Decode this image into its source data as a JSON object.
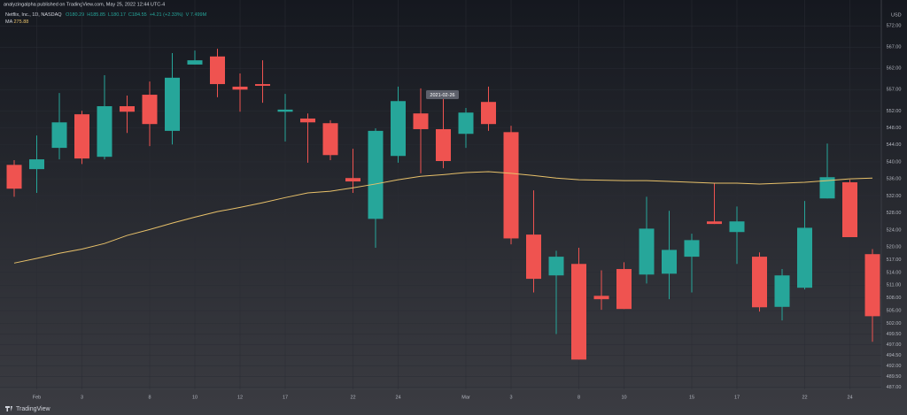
{
  "chart_data": {
    "type": "candlestick",
    "publisher": "analyzingalpha published on TradingView.com, May 25, 2022 12:44 UTC-4",
    "symbol": "Netflix, Inc., 1D, NASDAQ",
    "legend_values": [
      "O180.29",
      "H185.85",
      "L180.17",
      "C184.55",
      "+4.21 (+2.33%)",
      "V 7.499M"
    ],
    "ma_label": "MA",
    "ma_value": "275.88",
    "currency": "USD",
    "tooltip": "2021-02-26",
    "brand": "TradingView",
    "up_color": "#26a69a",
    "down_color": "#ef5350",
    "ma_color": "#e8c16a",
    "grid": true,
    "categories": [
      null,
      "Feb",
      null,
      "3",
      null,
      null,
      "8",
      null,
      "10",
      null,
      "12",
      null,
      "17",
      null,
      null,
      "22",
      null,
      "24",
      null,
      null,
      "Mar",
      null,
      "3",
      null,
      null,
      "8",
      null,
      "10",
      null,
      null,
      "15",
      null,
      "17",
      null,
      null,
      "22",
      null,
      "24",
      null
    ],
    "open": [
      539.3,
      538.3,
      543.3,
      551.2,
      541.2,
      553.1,
      555.8,
      547.3,
      562.9,
      564.8,
      557.7,
      558.3,
      551.8,
      550.2,
      549.1,
      536.2,
      526.6,
      541.4,
      551.4,
      547.7,
      546.6,
      554.1,
      547.0,
      522.9,
      513.3,
      516.0,
      508.5,
      514.8,
      513.5,
      513.7,
      517.7,
      526.0,
      523.5,
      517.7,
      505.9,
      510.4,
      531.4,
      535.2,
      518.3
    ],
    "high": [
      540.4,
      546.2,
      556.2,
      552.0,
      560.4,
      555.6,
      558.9,
      565.6,
      566.2,
      566.6,
      560.8,
      563.9,
      556.0,
      551.4,
      549.8,
      543.1,
      547.9,
      557.7,
      557.3,
      554.8,
      552.7,
      557.7,
      548.5,
      533.3,
      519.1,
      519.8,
      514.5,
      516.4,
      531.8,
      528.5,
      523.1,
      535.0,
      529.5,
      518.7,
      514.8,
      530.8,
      544.3,
      535.8,
      519.5
    ],
    "low": [
      531.8,
      532.7,
      540.6,
      539.5,
      540.6,
      546.8,
      543.7,
      544.1,
      562.9,
      555.2,
      551.8,
      553.9,
      544.8,
      539.8,
      540.4,
      532.7,
      519.8,
      539.8,
      537.3,
      538.5,
      543.3,
      547.3,
      520.6,
      509.3,
      499.5,
      493.5,
      505.2,
      505.4,
      511.4,
      507.7,
      509.3,
      525.4,
      516.0,
      504.8,
      502.7,
      510.0,
      531.4,
      522.3,
      497.7
    ],
    "close": [
      533.7,
      540.6,
      549.3,
      540.8,
      553.1,
      551.8,
      548.9,
      559.8,
      563.9,
      558.3,
      557.0,
      557.9,
      552.3,
      549.3,
      541.6,
      535.4,
      547.3,
      554.3,
      547.7,
      540.2,
      551.6,
      548.9,
      522.0,
      512.5,
      517.7,
      493.5,
      507.7,
      505.4,
      524.3,
      519.3,
      521.6,
      525.4,
      526.0,
      505.8,
      513.3,
      524.5,
      536.4,
      522.3,
      503.7
    ],
    "ma": [
      516.2,
      517.3,
      518.5,
      519.5,
      520.8,
      522.7,
      524.1,
      525.6,
      527.0,
      528.3,
      529.3,
      530.4,
      531.6,
      532.7,
      533.1,
      533.9,
      534.8,
      535.8,
      536.6,
      537.0,
      537.5,
      537.7,
      537.3,
      536.8,
      536.2,
      535.8,
      535.7,
      535.6,
      535.6,
      535.4,
      535.2,
      535.0,
      535.0,
      534.8,
      535.0,
      535.2,
      535.6,
      536.0,
      536.2
    ],
    "ylim": [
      486.5,
      576
    ],
    "yticks": [
      {
        "value": 572,
        "label": "572.00"
      },
      {
        "value": 567,
        "label": "567.00"
      },
      {
        "value": 562,
        "label": "562.00"
      },
      {
        "value": 557,
        "label": "557.00"
      },
      {
        "value": 552,
        "label": "552.00"
      },
      {
        "value": 548,
        "label": "548.00"
      },
      {
        "value": 544,
        "label": "544.00"
      },
      {
        "value": 540,
        "label": "540.00"
      },
      {
        "value": 536,
        "label": "536.00"
      },
      {
        "value": 532,
        "label": "532.00"
      },
      {
        "value": 528,
        "label": "528.00"
      },
      {
        "value": 524,
        "label": "524.00"
      },
      {
        "value": 520,
        "label": "520.00"
      },
      {
        "value": 517,
        "label": "517.00"
      },
      {
        "value": 514,
        "label": "514.00"
      },
      {
        "value": 511,
        "label": "511.00"
      },
      {
        "value": 508,
        "label": "508.00"
      },
      {
        "value": 505,
        "label": "505.00"
      },
      {
        "value": 502,
        "label": "502.00"
      },
      {
        "value": 499.5,
        "label": "499.50"
      },
      {
        "value": 497,
        "label": "497.00"
      },
      {
        "value": 494.5,
        "label": "494.50"
      },
      {
        "value": 492,
        "label": "492.00"
      },
      {
        "value": 489.5,
        "label": "489.50"
      },
      {
        "value": 487,
        "label": "487.00"
      }
    ]
  }
}
